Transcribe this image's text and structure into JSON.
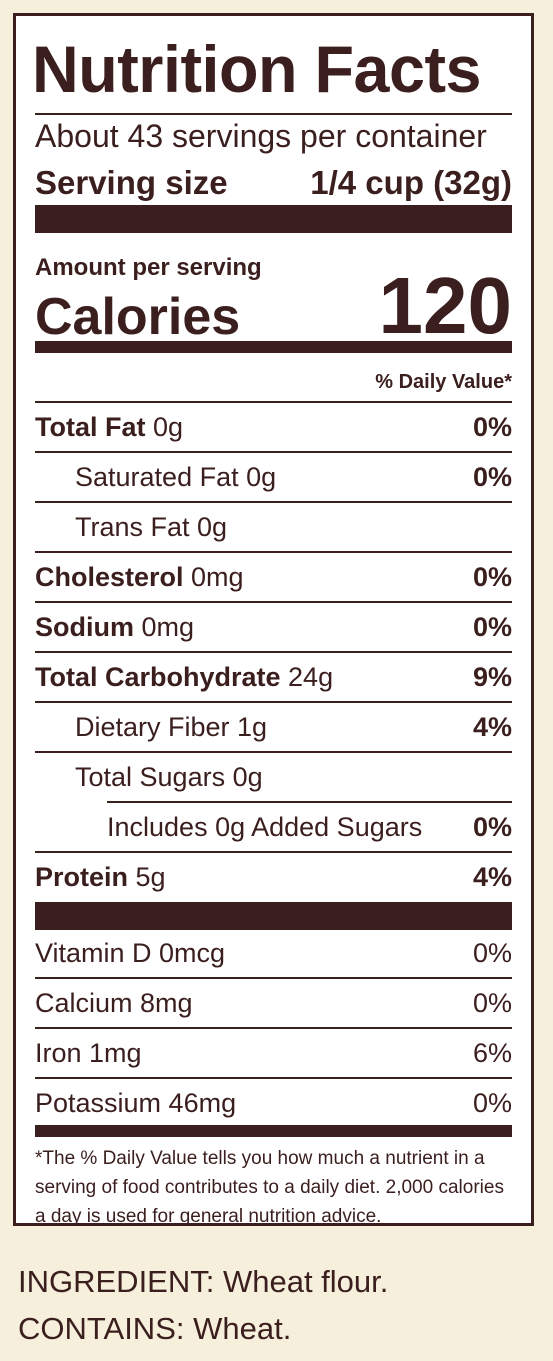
{
  "label": {
    "title": "Nutrition Facts",
    "servings_per_container": "About 43 servings per container",
    "serving_size_label": "Serving size",
    "serving_size_value": "1/4 cup (32g)",
    "amount_per_serving": "Amount per serving",
    "calories_label": "Calories",
    "calories_value": "120",
    "daily_value_header": "% Daily Value*",
    "nutrients": [
      {
        "name": "Total Fat",
        "amount": " 0g",
        "dv": "0%"
      },
      {
        "name": "Saturated Fat 0g",
        "amount": "",
        "dv": "0%"
      },
      {
        "name": "Trans Fat 0g",
        "amount": "",
        "dv": ""
      },
      {
        "name": "Cholesterol",
        "amount": " 0mg",
        "dv": "0%"
      },
      {
        "name": "Sodium",
        "amount": " 0mg",
        "dv": "0%"
      },
      {
        "name": "Total Carbohydrate",
        "amount": " 24g",
        "dv": "9%"
      },
      {
        "name": "Dietary Fiber 1g",
        "amount": "",
        "dv": "4%"
      },
      {
        "name": "Total Sugars 0g",
        "amount": "",
        "dv": ""
      },
      {
        "name": "Includes 0g Added Sugars",
        "amount": "",
        "dv": "0%"
      },
      {
        "name": "Protein",
        "amount": " 5g",
        "dv": "4%"
      }
    ],
    "vitamins": [
      {
        "name": "Vitamin D 0mcg",
        "dv": "0%"
      },
      {
        "name": "Calcium 8mg",
        "dv": "0%"
      },
      {
        "name": "Iron 1mg",
        "dv": "6%"
      },
      {
        "name": "Potassium 46mg",
        "dv": "0%"
      }
    ],
    "footnote": "*The % Daily Value tells you how much a nutrient in a serving of food contributes to a daily diet. 2,000 calories a day is used for general nutrition advice."
  },
  "ingredients": "INGREDIENT: Wheat flour.",
  "allergens": "CONTAINS: Wheat.",
  "colors": {
    "ink": "#3b1e1e",
    "background": "#f6efdc",
    "panel": "#ffffff"
  }
}
